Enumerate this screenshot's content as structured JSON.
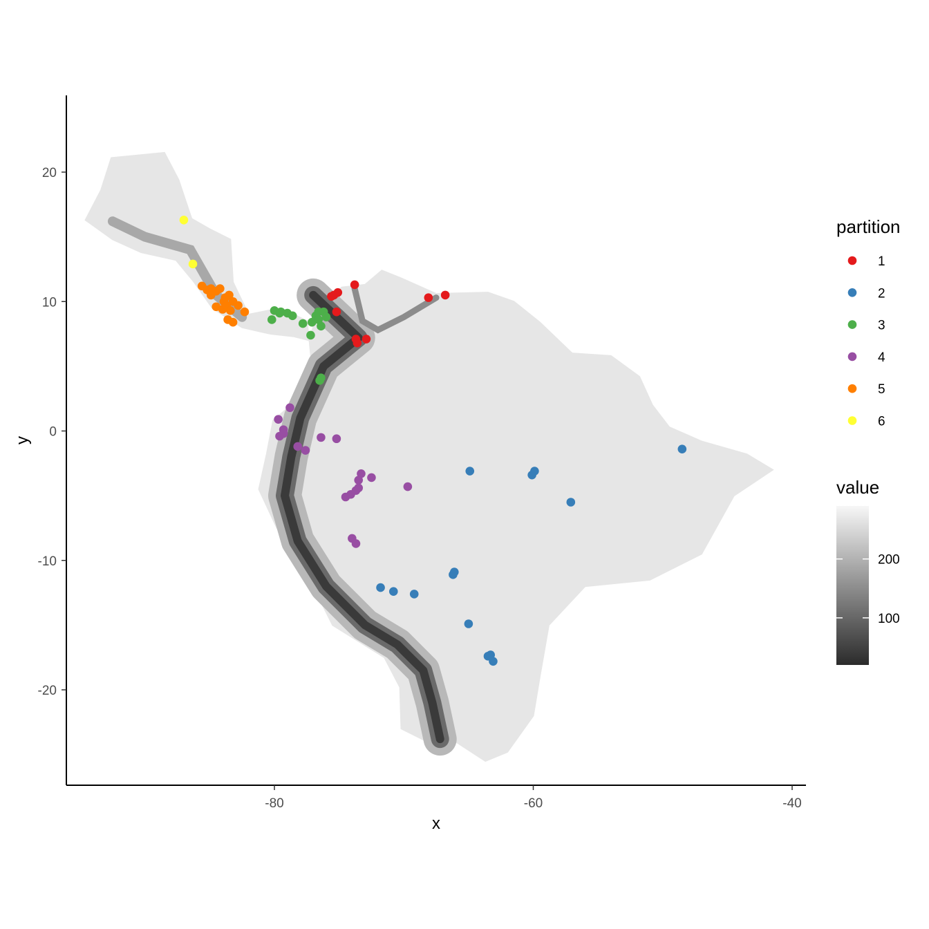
{
  "chart_data": {
    "type": "scatter",
    "title": "",
    "xlabel": "x",
    "ylabel": "y",
    "xlim": [
      -96,
      -39.5
    ],
    "ylim": [
      -27.5,
      26
    ],
    "x_ticks": [
      -80,
      -60,
      -40
    ],
    "x_tick_labels": [
      "-80",
      "-60",
      "-40"
    ],
    "y_ticks": [
      20,
      10,
      0,
      -10,
      -20
    ],
    "y_tick_labels": [
      "20",
      "10",
      "0",
      "-10",
      "-20"
    ],
    "grid": false,
    "legend_placement": "right",
    "raster": {
      "name": "value",
      "color_scale": "grayscale",
      "colorbar_ticks": [
        100,
        200
      ],
      "colorbar_tick_labels": [
        "100",
        "200"
      ],
      "colorbar_range": [
        20,
        290
      ],
      "colors": [
        "#2b2b2b",
        "#f7f7f7"
      ]
    },
    "partition_legend_title": "partition",
    "series": [
      {
        "name": "1",
        "color": "#E41A1C",
        "points": [
          [
            -73.8,
            11.3
          ],
          [
            -75.1,
            10.7
          ],
          [
            -75.4,
            10.5
          ],
          [
            -75.6,
            10.4
          ],
          [
            -75.2,
            9.2
          ],
          [
            -73.7,
            7.1
          ],
          [
            -73.6,
            6.8
          ],
          [
            -72.9,
            7.1
          ],
          [
            -68.1,
            10.3
          ],
          [
            -66.8,
            10.5
          ]
        ]
      },
      {
        "name": "2",
        "color": "#377EB8",
        "points": [
          [
            -64.9,
            -3.1
          ],
          [
            -60.1,
            -3.4
          ],
          [
            -59.9,
            -3.1
          ],
          [
            -57.1,
            -5.5
          ],
          [
            -48.5,
            -1.4
          ],
          [
            -66.1,
            -10.9
          ],
          [
            -66.2,
            -11.1
          ],
          [
            -71.8,
            -12.1
          ],
          [
            -70.8,
            -12.4
          ],
          [
            -69.2,
            -12.6
          ],
          [
            -65.0,
            -14.9
          ],
          [
            -63.5,
            -17.4
          ],
          [
            -63.3,
            -17.3
          ],
          [
            -63.1,
            -17.8
          ]
        ]
      },
      {
        "name": "3",
        "color": "#4DAF4A",
        "points": [
          [
            -80.0,
            9.3
          ],
          [
            -79.6,
            9.1
          ],
          [
            -79.5,
            9.2
          ],
          [
            -79.0,
            9.1
          ],
          [
            -78.6,
            8.9
          ],
          [
            -77.8,
            8.3
          ],
          [
            -77.1,
            8.4
          ],
          [
            -76.8,
            8.9
          ],
          [
            -76.6,
            9.2
          ],
          [
            -76.2,
            9.2
          ],
          [
            -76.6,
            8.6
          ],
          [
            -76.4,
            8.1
          ],
          [
            -76.0,
            8.8
          ],
          [
            -80.2,
            8.6
          ],
          [
            -77.2,
            7.4
          ],
          [
            -76.4,
            4.1
          ],
          [
            -76.5,
            3.9
          ]
        ]
      },
      {
        "name": "4",
        "color": "#984EA3",
        "points": [
          [
            -78.8,
            1.8
          ],
          [
            -79.7,
            0.9
          ],
          [
            -79.3,
            0.1
          ],
          [
            -79.3,
            -0.2
          ],
          [
            -79.6,
            -0.4
          ],
          [
            -78.2,
            -1.2
          ],
          [
            -77.6,
            -1.5
          ],
          [
            -76.4,
            -0.5
          ],
          [
            -75.2,
            -0.6
          ],
          [
            -73.3,
            -3.3
          ],
          [
            -72.5,
            -3.6
          ],
          [
            -69.7,
            -4.3
          ],
          [
            -73.5,
            -3.8
          ],
          [
            -73.5,
            -4.4
          ],
          [
            -73.7,
            -4.6
          ],
          [
            -74.1,
            -4.9
          ],
          [
            -74.5,
            -5.1
          ],
          [
            -74.0,
            -8.3
          ],
          [
            -73.7,
            -8.7
          ]
        ]
      },
      {
        "name": "5",
        "color": "#FF7F00",
        "points": [
          [
            -85.6,
            11.2
          ],
          [
            -85.2,
            10.9
          ],
          [
            -84.9,
            11.0
          ],
          [
            -84.5,
            10.8
          ],
          [
            -84.2,
            11.0
          ],
          [
            -84.9,
            10.5
          ],
          [
            -83.8,
            10.3
          ],
          [
            -83.5,
            10.5
          ],
          [
            -83.9,
            10.0
          ],
          [
            -83.2,
            10.0
          ],
          [
            -84.5,
            9.6
          ],
          [
            -84.0,
            9.4
          ],
          [
            -83.7,
            9.7
          ],
          [
            -82.8,
            9.7
          ],
          [
            -83.4,
            9.3
          ],
          [
            -82.3,
            9.2
          ],
          [
            -83.6,
            8.6
          ],
          [
            -83.2,
            8.4
          ]
        ]
      },
      {
        "name": "6",
        "color": "#FFFF33",
        "points": [
          [
            -87.0,
            16.3
          ],
          [
            -86.3,
            12.9
          ]
        ]
      }
    ]
  }
}
